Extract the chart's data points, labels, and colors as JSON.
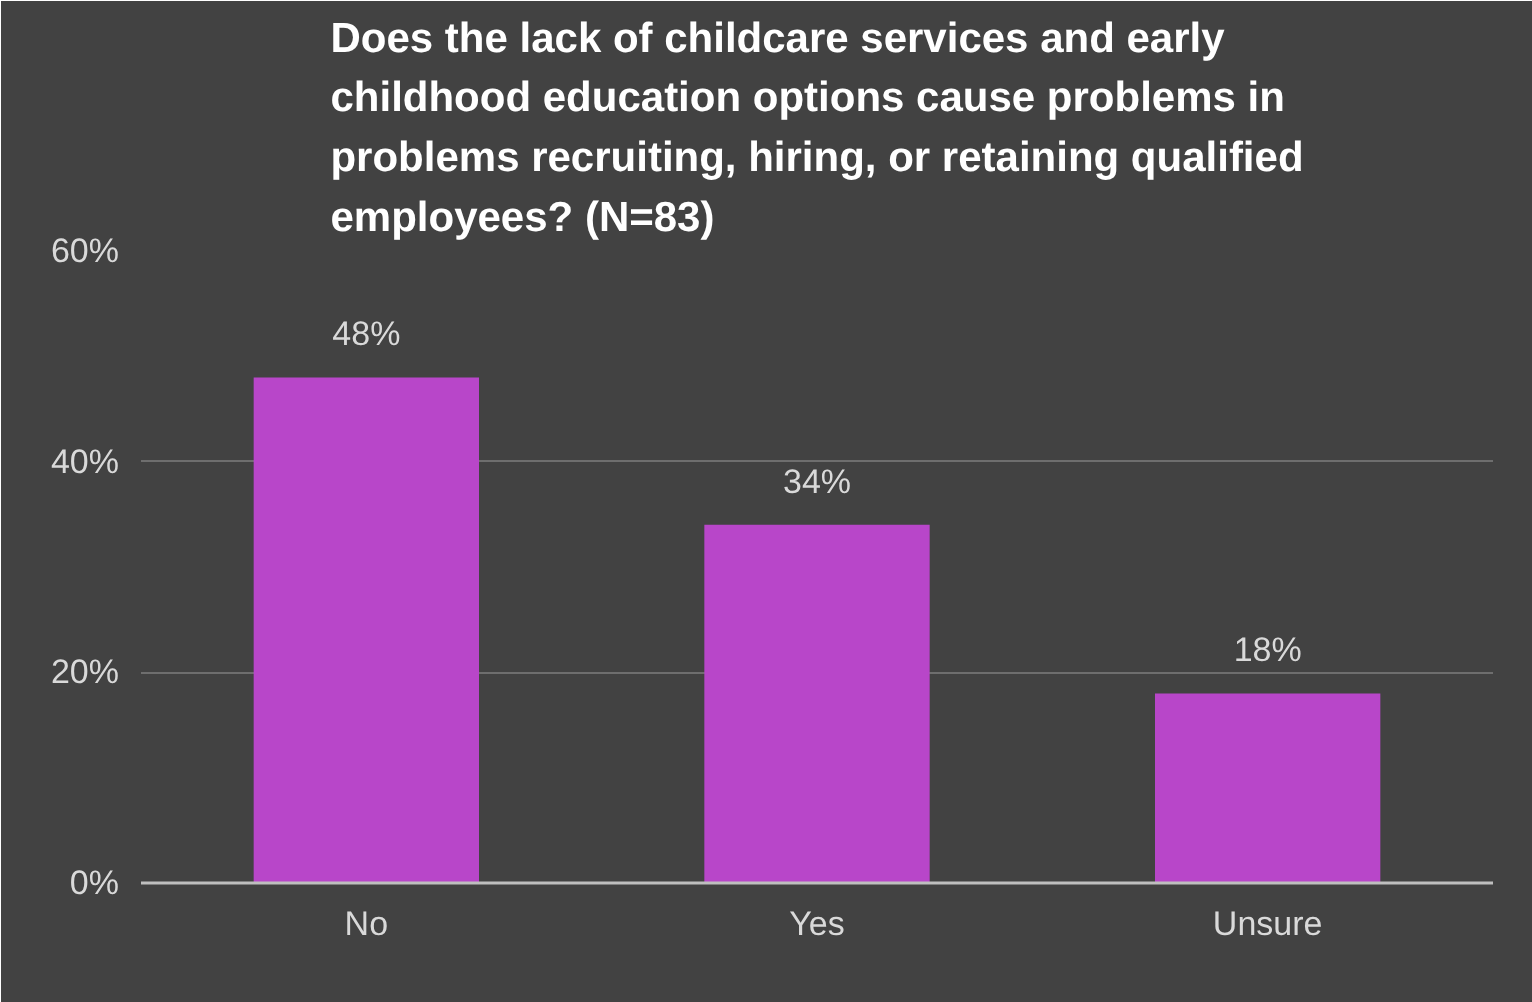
{
  "chart_data": {
    "type": "bar",
    "title": "Does the lack of childcare services and early childhood education options cause problems in problems recruiting, hiring, or retaining qualified employees?  (N=83)",
    "categories": [
      "No",
      "Yes",
      "Unsure"
    ],
    "values": [
      48,
      34,
      18
    ],
    "value_labels": [
      "48%",
      "34%",
      "18%"
    ],
    "color": "#b846c9",
    "ylim": [
      0,
      60
    ],
    "yticks": [
      {
        "value": 0,
        "label": "0%"
      },
      {
        "value": 20,
        "label": "20%"
      },
      {
        "value": 40,
        "label": "40%"
      },
      {
        "value": 60,
        "label": "60%"
      }
    ],
    "grid": "y"
  }
}
